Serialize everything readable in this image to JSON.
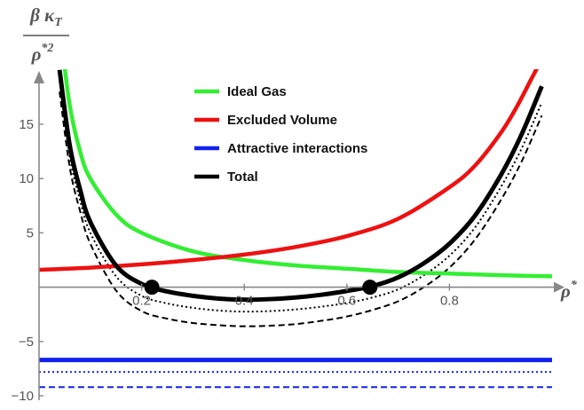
{
  "chart_data": {
    "type": "line",
    "ylabel": {
      "numerator": "β κ",
      "numerator_sub": "T",
      "denominator": "ρ",
      "denominator_sup": "*2"
    },
    "xlabel": {
      "main": "ρ",
      "sup": "*"
    },
    "xlim": [
      0,
      1.0
    ],
    "ylim": [
      -10,
      20
    ],
    "x_ticks": [
      0.2,
      0.4,
      0.6,
      0.8
    ],
    "y_ticks": [
      -10,
      -5,
      5,
      10,
      15
    ],
    "grid": false,
    "legend_position": "top-center",
    "series": [
      {
        "name": "Ideal Gas",
        "color": "#33ee33",
        "style": "solid",
        "x": [
          0.045,
          0.06,
          0.08,
          0.1,
          0.15,
          0.2,
          0.3,
          0.4,
          0.5,
          0.6,
          0.7,
          0.8,
          0.9,
          1.0
        ],
        "y": [
          22.2,
          16.7,
          12.5,
          10.0,
          6.7,
          5.0,
          3.3,
          2.5,
          2.0,
          1.7,
          1.4,
          1.25,
          1.1,
          1.0
        ]
      },
      {
        "name": "Excluded Volume",
        "color": "#ee1111",
        "style": "solid",
        "x": [
          0.0,
          0.1,
          0.2,
          0.3,
          0.4,
          0.5,
          0.6,
          0.7,
          0.8,
          0.85,
          0.9,
          0.93,
          0.96,
          0.98
        ],
        "y": [
          1.6,
          1.8,
          2.1,
          2.5,
          3.0,
          3.7,
          4.7,
          6.3,
          9.2,
          11.2,
          14.2,
          16.5,
          19.2,
          21.0
        ]
      },
      {
        "name": "Attractive interactions",
        "color": "#1122ee",
        "style": "solid",
        "x": [
          0.0,
          1.0
        ],
        "y": [
          -6.7,
          -6.7
        ]
      },
      {
        "name": "Total",
        "color": "#000000",
        "style": "solid",
        "x": [
          0.04,
          0.06,
          0.08,
          0.1,
          0.15,
          0.2,
          0.25,
          0.3,
          0.35,
          0.4,
          0.45,
          0.5,
          0.55,
          0.6,
          0.65,
          0.7,
          0.75,
          0.8,
          0.85,
          0.9,
          0.94,
          0.98
        ],
        "y": [
          20.0,
          13.0,
          9.0,
          6.0,
          2.0,
          0.3,
          -0.4,
          -0.8,
          -1.05,
          -1.15,
          -1.1,
          -0.95,
          -0.7,
          -0.35,
          0.1,
          0.9,
          2.2,
          4.0,
          6.6,
          10.3,
          14.0,
          18.5
        ]
      },
      {
        "color": "#000000",
        "style": "dotted",
        "x": [
          0.04,
          0.06,
          0.08,
          0.1,
          0.15,
          0.2,
          0.25,
          0.3,
          0.35,
          0.4,
          0.45,
          0.5,
          0.55,
          0.6,
          0.65,
          0.7,
          0.75,
          0.8,
          0.85,
          0.9,
          0.94,
          0.98
        ],
        "y": [
          19.0,
          12.0,
          8.0,
          5.0,
          1.0,
          -0.8,
          -1.5,
          -1.9,
          -2.15,
          -2.25,
          -2.2,
          -2.05,
          -1.8,
          -1.45,
          -0.95,
          -0.2,
          1.1,
          2.9,
          5.5,
          9.2,
          12.7,
          17.0
        ]
      },
      {
        "color": "#000000",
        "style": "dashed",
        "x": [
          0.04,
          0.06,
          0.08,
          0.1,
          0.15,
          0.2,
          0.25,
          0.3,
          0.35,
          0.4,
          0.45,
          0.5,
          0.55,
          0.6,
          0.65,
          0.7,
          0.75,
          0.8,
          0.85,
          0.9,
          0.94,
          0.98
        ],
        "y": [
          18.0,
          11.0,
          7.0,
          4.0,
          -0.3,
          -2.2,
          -2.9,
          -3.3,
          -3.5,
          -3.6,
          -3.55,
          -3.4,
          -3.1,
          -2.7,
          -2.1,
          -1.3,
          0.0,
          1.8,
          4.4,
          8.0,
          11.5,
          15.8
        ]
      },
      {
        "color": "#1122ee",
        "style": "dotted",
        "x": [
          0.0,
          1.0
        ],
        "y": [
          -7.8,
          -7.8
        ]
      },
      {
        "color": "#1122ee",
        "style": "dashed",
        "x": [
          0.0,
          1.0
        ],
        "y": [
          -9.2,
          -9.2
        ]
      }
    ],
    "markers": [
      {
        "x": 0.22,
        "y": 0.0,
        "color": "#000000"
      },
      {
        "x": 0.645,
        "y": 0.0,
        "color": "#000000"
      }
    ]
  }
}
